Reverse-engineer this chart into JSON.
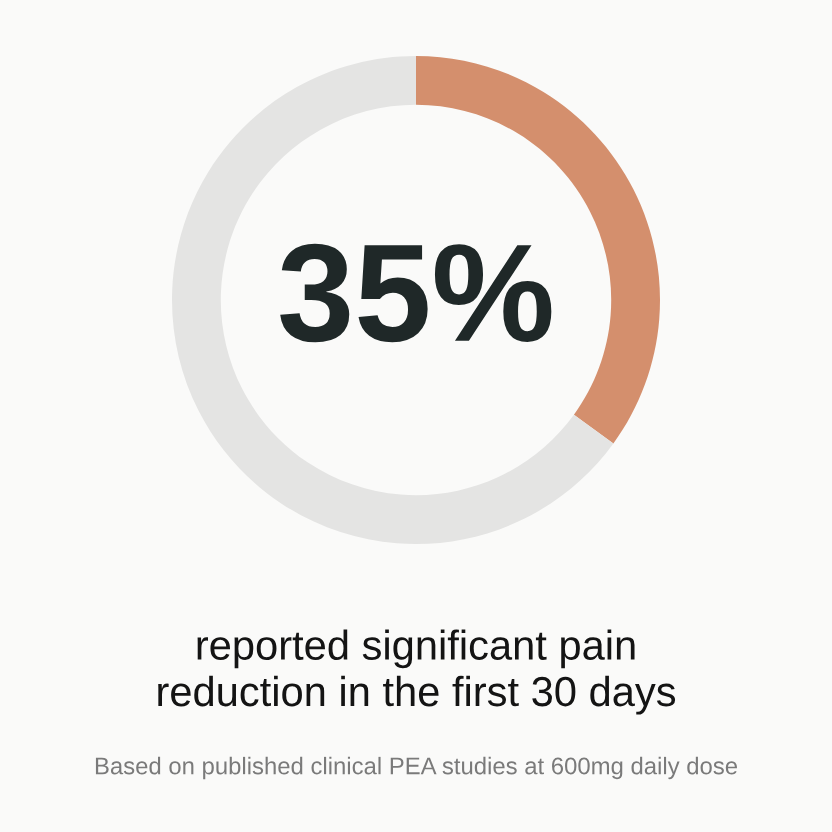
{
  "chart_data": {
    "type": "donut",
    "categories": [
      null,
      null
    ],
    "values": [
      35,
      65
    ],
    "colors": [
      "#d48f6d",
      "#e4e4e3"
    ],
    "value_labels": [
      "35%",
      null
    ],
    "title": "reported significant pain\nreduction in the first 30 days",
    "annotations": [
      "Based on published clinical PEA studies at 600mg daily dose"
    ]
  }
}
